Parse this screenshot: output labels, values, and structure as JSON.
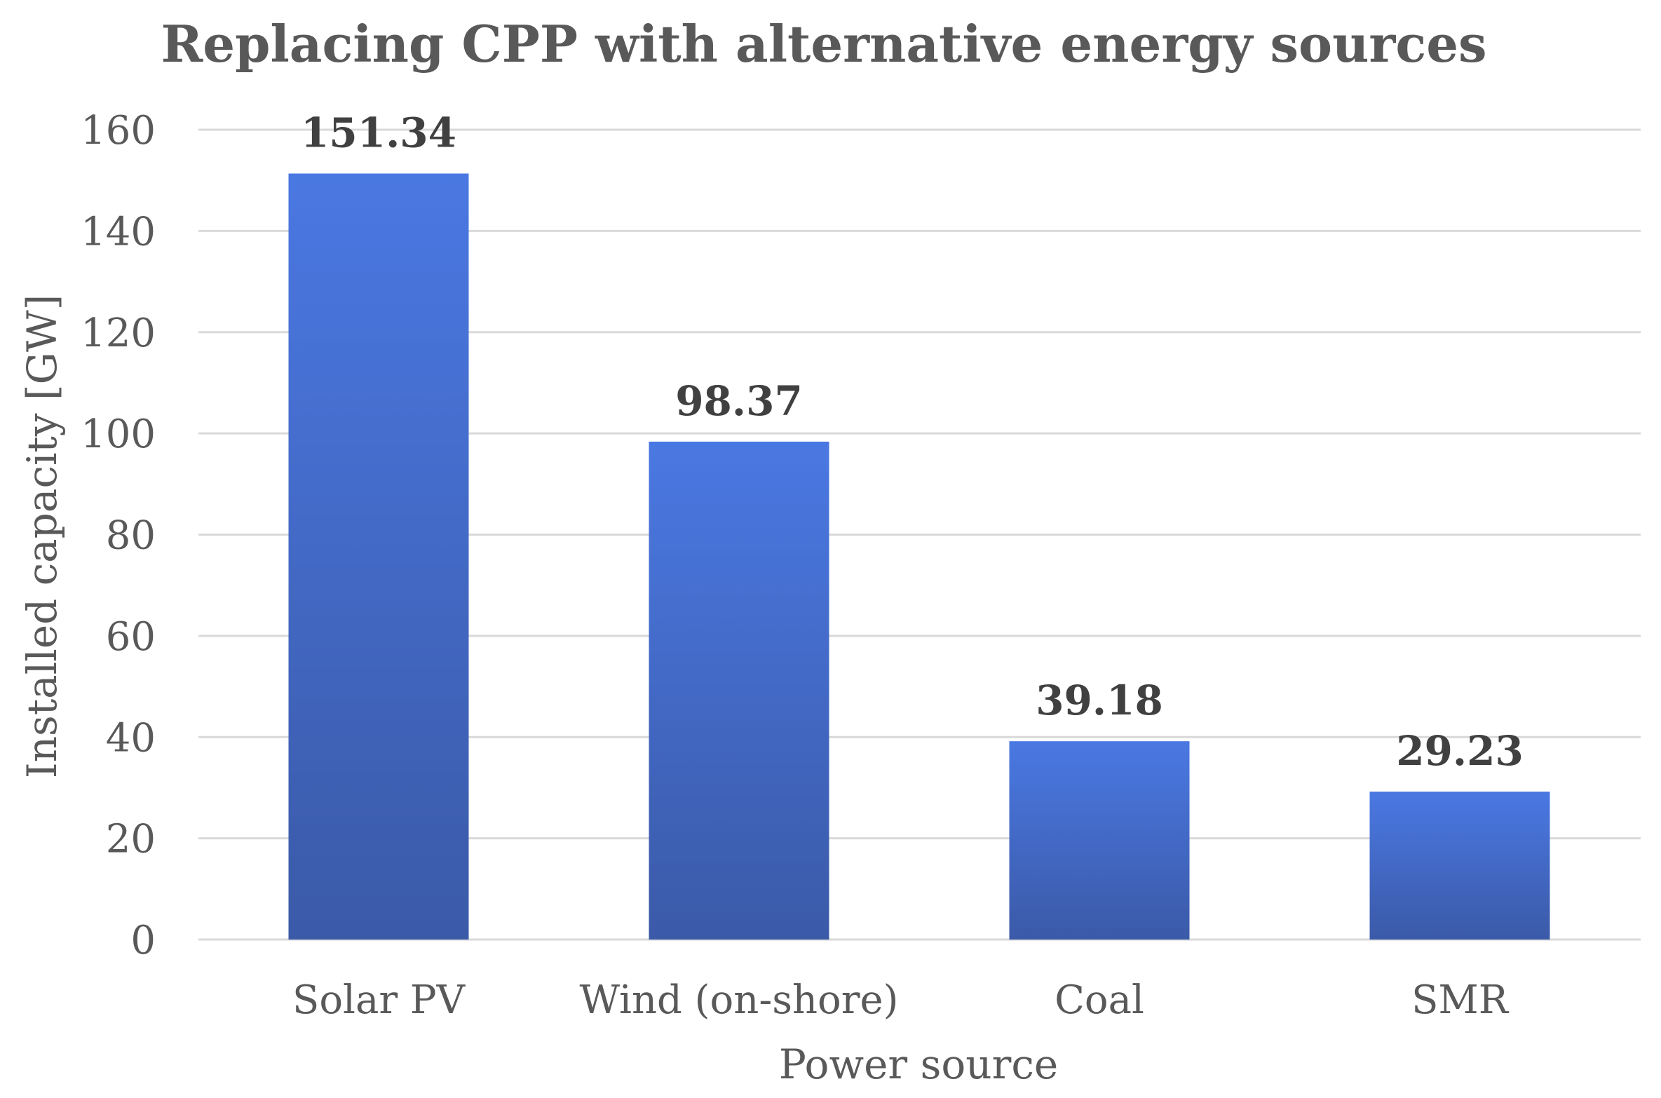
{
  "chart_data": {
    "type": "bar",
    "title": "Replacing CPP with alternative energy sources",
    "xlabel": "Power source",
    "ylabel": "Installed capacity [GW]",
    "categories": [
      "Solar PV",
      "Wind (on-shore)",
      "Coal",
      "SMR"
    ],
    "values": [
      151.34,
      98.37,
      39.18,
      29.23
    ],
    "value_labels": [
      "151.34",
      "98.37",
      "39.18",
      "29.23"
    ],
    "ylim": [
      0,
      160
    ],
    "yticks": [
      0,
      20,
      40,
      60,
      80,
      100,
      120,
      140,
      160
    ],
    "grid": true,
    "legend": "none",
    "bar_color_top": "#4a78e2",
    "bar_color_bottom": "#3b5aa8"
  }
}
